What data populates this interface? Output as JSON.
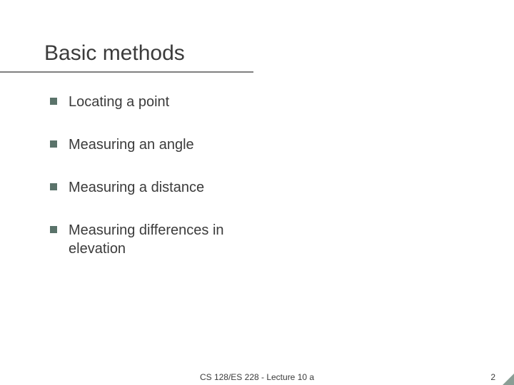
{
  "slide": {
    "title": "Basic methods",
    "title_color": "#3b3b3b",
    "title_fontsize": 30,
    "rule_color": "#808080",
    "rule_width": 355,
    "bullets": [
      {
        "text": "Locating a point"
      },
      {
        "text": "Measuring an angle"
      },
      {
        "text": "Measuring a distance"
      },
      {
        "text": "Measuring differences in elevation"
      }
    ],
    "bullet_marker_color": "#5a736a",
    "bullet_fontsize": 20,
    "bullet_text_color": "#3b3b3b",
    "background_color": "#ffffff",
    "corner_accent_color": "#8a9e95"
  },
  "footer": {
    "center": "CS 128/ES 228 - Lecture 10 a",
    "page_number": "2",
    "fontsize": 12,
    "color": "#3b3b3b"
  }
}
